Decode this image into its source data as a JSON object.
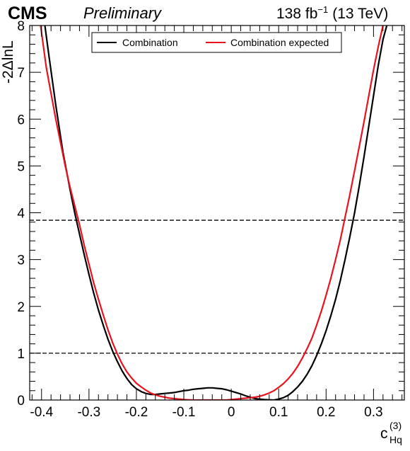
{
  "header": {
    "experiment": "CMS",
    "status": "Preliminary",
    "lumi_value": "138 fb",
    "lumi_exp": "−1",
    "energy": "(13 TeV)"
  },
  "chart_data": {
    "type": "line",
    "xlabel_main": "c",
    "xlabel_sup": "(3)",
    "xlabel_sub": "Hq",
    "ylabel": "-2ΔlnL",
    "xlim": [
      -0.425,
      0.365
    ],
    "ylim": [
      0,
      8
    ],
    "x_ticks": [
      -0.4,
      -0.3,
      -0.2,
      -0.1,
      0,
      0.1,
      0.2,
      0.3
    ],
    "x_tick_labels": [
      "-0.4",
      "-0.3",
      "-0.2",
      "-0.1",
      "0",
      "0.1",
      "0.2",
      "0.3"
    ],
    "y_ticks": [
      0,
      1,
      2,
      3,
      4,
      5,
      6,
      7,
      8
    ],
    "y_tick_labels": [
      "0",
      "1",
      "2",
      "3",
      "4",
      "5",
      "6",
      "7",
      "8"
    ],
    "reference_lines": [
      1.0,
      3.84
    ],
    "legend": {
      "placement": "top-center"
    },
    "series": [
      {
        "name": "Combination",
        "color": "#000000",
        "x": [
          -0.393,
          -0.385,
          -0.37,
          -0.355,
          -0.34,
          -0.33,
          -0.32,
          -0.31,
          -0.3,
          -0.29,
          -0.28,
          -0.27,
          -0.26,
          -0.25,
          -0.24,
          -0.23,
          -0.22,
          -0.21,
          -0.2,
          -0.19,
          -0.18,
          -0.17,
          -0.16,
          -0.15,
          -0.14,
          -0.13,
          -0.12,
          -0.11,
          -0.1,
          -0.09,
          -0.08,
          -0.07,
          -0.06,
          -0.05,
          -0.04,
          -0.03,
          -0.02,
          -0.01,
          0.0,
          0.01,
          0.02,
          0.03,
          0.04,
          0.05,
          0.06,
          0.07,
          0.08,
          0.09,
          0.1,
          0.11,
          0.12,
          0.13,
          0.14,
          0.15,
          0.16,
          0.17,
          0.18,
          0.19,
          0.2,
          0.21,
          0.22,
          0.23,
          0.24,
          0.25,
          0.26,
          0.27,
          0.28,
          0.29,
          0.3,
          0.31,
          0.32,
          0.328,
          0.336
        ],
        "y": [
          8.0,
          7.4,
          6.3,
          5.3,
          4.5,
          4.0,
          3.55,
          3.1,
          2.68,
          2.28,
          1.92,
          1.6,
          1.3,
          1.04,
          0.82,
          0.62,
          0.46,
          0.33,
          0.24,
          0.18,
          0.14,
          0.12,
          0.12,
          0.13,
          0.14,
          0.15,
          0.16,
          0.18,
          0.2,
          0.21,
          0.23,
          0.24,
          0.25,
          0.26,
          0.26,
          0.25,
          0.24,
          0.22,
          0.19,
          0.16,
          0.13,
          0.09,
          0.06,
          0.03,
          0.02,
          0.01,
          0.005,
          0.0,
          0.02,
          0.05,
          0.1,
          0.18,
          0.28,
          0.4,
          0.55,
          0.73,
          0.95,
          1.2,
          1.48,
          1.8,
          2.15,
          2.55,
          3.0,
          3.48,
          4.0,
          4.58,
          5.2,
          5.85,
          6.5,
          7.15,
          7.7,
          8.0,
          8.3
        ]
      },
      {
        "name": "Combination expected",
        "color": "#e8131e",
        "x": [
          -0.402,
          -0.39,
          -0.38,
          -0.37,
          -0.36,
          -0.35,
          -0.34,
          -0.33,
          -0.32,
          -0.31,
          -0.3,
          -0.29,
          -0.28,
          -0.27,
          -0.26,
          -0.25,
          -0.24,
          -0.23,
          -0.22,
          -0.21,
          -0.2,
          -0.19,
          -0.18,
          -0.17,
          -0.16,
          -0.15,
          -0.14,
          -0.13,
          -0.12,
          -0.11,
          -0.1,
          -0.09,
          -0.08,
          -0.07,
          -0.06,
          -0.05,
          -0.04,
          -0.03,
          -0.02,
          -0.01,
          0.0,
          0.01,
          0.02,
          0.03,
          0.04,
          0.05,
          0.06,
          0.07,
          0.08,
          0.09,
          0.1,
          0.11,
          0.12,
          0.13,
          0.14,
          0.15,
          0.16,
          0.17,
          0.18,
          0.19,
          0.2,
          0.21,
          0.22,
          0.23,
          0.24,
          0.25,
          0.26,
          0.27,
          0.28,
          0.29,
          0.3,
          0.31,
          0.32,
          0.33
        ],
        "y": [
          8.0,
          7.1,
          6.55,
          6.0,
          5.5,
          5.0,
          4.55,
          4.15,
          3.75,
          3.3,
          2.9,
          2.5,
          2.15,
          1.82,
          1.5,
          1.22,
          0.98,
          0.77,
          0.6,
          0.47,
          0.36,
          0.28,
          0.21,
          0.15,
          0.11,
          0.08,
          0.06,
          0.04,
          0.03,
          0.02,
          0.01,
          0.005,
          0.0,
          0.0,
          0.0,
          0.0,
          0.0,
          0.0,
          0.0,
          0.0,
          0.01,
          0.02,
          0.03,
          0.04,
          0.05,
          0.06,
          0.08,
          0.11,
          0.15,
          0.2,
          0.27,
          0.35,
          0.45,
          0.57,
          0.72,
          0.9,
          1.1,
          1.32,
          1.6,
          1.9,
          2.24,
          2.6,
          3.0,
          3.42,
          3.9,
          4.38,
          4.9,
          5.42,
          5.95,
          6.5,
          7.05,
          7.55,
          8.0,
          8.4
        ]
      }
    ]
  }
}
